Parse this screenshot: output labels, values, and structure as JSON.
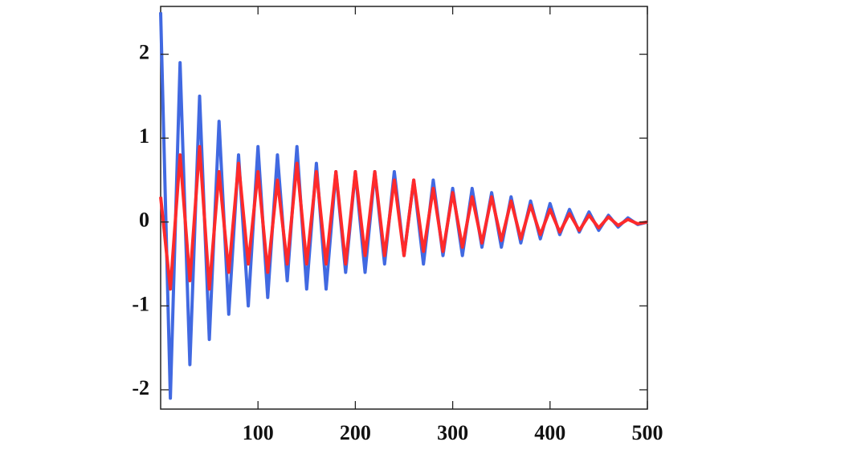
{
  "chart_data": {
    "type": "line",
    "x": [
      0,
      10,
      20,
      30,
      40,
      50,
      60,
      70,
      80,
      90,
      100,
      110,
      120,
      130,
      140,
      150,
      160,
      170,
      180,
      190,
      200,
      210,
      220,
      230,
      240,
      250,
      260,
      270,
      280,
      290,
      300,
      310,
      320,
      330,
      340,
      350,
      360,
      370,
      380,
      390,
      400,
      410,
      420,
      430,
      440,
      450,
      460,
      470,
      480,
      490,
      500
    ],
    "series": [
      {
        "color": "#4169e1",
        "values": [
          2.5,
          -2.1,
          1.9,
          -1.7,
          1.5,
          -1.4,
          1.2,
          -1.1,
          0.8,
          -1.0,
          0.9,
          -0.9,
          0.8,
          -0.7,
          0.9,
          -0.8,
          0.7,
          -0.8,
          0.6,
          -0.6,
          0.6,
          -0.6,
          0.6,
          -0.5,
          0.6,
          -0.4,
          0.5,
          -0.5,
          0.5,
          -0.4,
          0.4,
          -0.4,
          0.4,
          -0.3,
          0.35,
          -0.3,
          0.3,
          -0.25,
          0.25,
          -0.2,
          0.22,
          -0.15,
          0.15,
          -0.12,
          0.12,
          -0.1,
          0.08,
          -0.06,
          0.05,
          -0.03,
          0
        ]
      },
      {
        "color": "#ff2a2a",
        "values": [
          0.3,
          -0.8,
          0.8,
          -0.7,
          0.9,
          -0.8,
          0.6,
          -0.6,
          0.7,
          -0.5,
          0.6,
          -0.6,
          0.5,
          -0.5,
          0.7,
          -0.5,
          0.6,
          -0.5,
          0.6,
          -0.5,
          0.6,
          -0.4,
          0.6,
          -0.4,
          0.5,
          -0.4,
          0.5,
          -0.35,
          0.4,
          -0.35,
          0.35,
          -0.3,
          0.3,
          -0.25,
          0.3,
          -0.22,
          0.25,
          -0.2,
          0.2,
          -0.15,
          0.15,
          -0.12,
          0.1,
          -0.1,
          0.08,
          -0.07,
          0.06,
          -0.04,
          0.03,
          -0.02,
          0
        ]
      }
    ],
    "xlim": [
      0,
      500
    ],
    "xticks": [
      100,
      200,
      300,
      400,
      500
    ],
    "ylim": [
      -2.23,
      2.57
    ],
    "yticks": [
      -2,
      -1,
      0,
      1,
      2
    ]
  }
}
